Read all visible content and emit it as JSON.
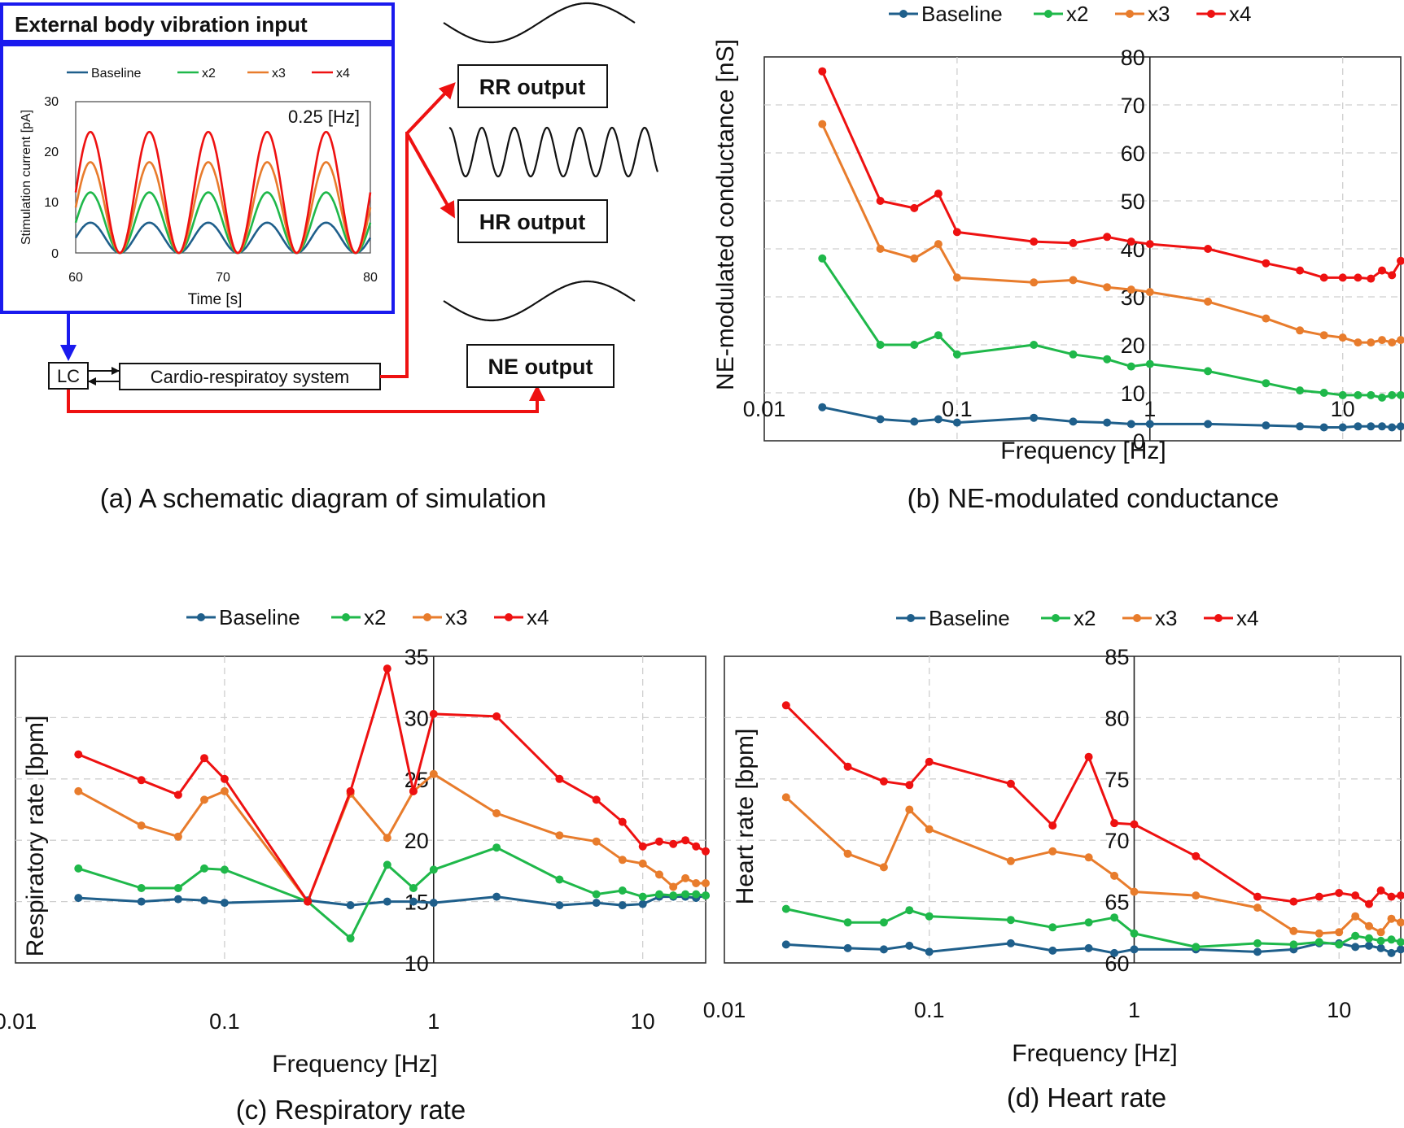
{
  "colors": {
    "Baseline": "#1f5f8b",
    "x2": "#1fb84a",
    "x3": "#e87c2c",
    "x4": "#ee1111",
    "blue": "#1a1aee",
    "red": "#ee1111"
  },
  "panel_a": {
    "title": "External body vibration input",
    "inner_chart": {
      "ylabel": "Stimulation current [pA]",
      "xlabel": "Time [s]",
      "yticks": [
        "30",
        "20",
        "10",
        "0"
      ],
      "xticks": [
        "60",
        "70",
        "80"
      ],
      "annotation": "0.25 [Hz]",
      "legend": [
        "Baseline",
        "x2",
        "x3",
        "x4"
      ]
    },
    "lc_label": "LC",
    "system_label": "Cardio-respiratoy system",
    "rr_label": "RR output",
    "hr_label": "HR output",
    "ne_label": "NE output",
    "caption": "(a) A schematic diagram of simulation"
  },
  "chart_data": [
    {
      "id": "a",
      "type": "line",
      "title": "",
      "xlabel": "Time [s]",
      "ylabel": "Stimulation current [pA]",
      "xlim": [
        60,
        80
      ],
      "ylim": [
        0,
        30
      ],
      "frequency_hz": 0.25,
      "series": [
        {
          "name": "Baseline",
          "amplitude": 6
        },
        {
          "name": "x2",
          "amplitude": 12
        },
        {
          "name": "x3",
          "amplitude": 18
        },
        {
          "name": "x4",
          "amplitude": 24
        }
      ]
    },
    {
      "id": "b",
      "type": "line",
      "title": "",
      "caption": "(b) NE-modulated conductance",
      "xlabel": "Frequency [Hz]",
      "ylabel": "NE-modulated conductance [nS]",
      "xscale": "log",
      "xlim": [
        0.01,
        20
      ],
      "ylim": [
        0,
        80
      ],
      "yticks": [
        "0",
        "10",
        "20",
        "30",
        "40",
        "50",
        "60",
        "70",
        "80"
      ],
      "xticks": [
        "0.01",
        "0.1",
        "1",
        "10"
      ],
      "x": [
        0.02,
        0.04,
        0.06,
        0.08,
        0.1,
        0.25,
        0.4,
        0.6,
        0.8,
        1,
        2,
        4,
        6,
        8,
        10,
        12,
        14,
        16,
        18,
        20
      ],
      "series": [
        {
          "name": "Baseline",
          "values": [
            7,
            4.5,
            4,
            4.5,
            3.8,
            4.8,
            4,
            3.8,
            3.5,
            3.5,
            3.5,
            3.2,
            3,
            2.8,
            2.8,
            3,
            3,
            3,
            2.8,
            3
          ]
        },
        {
          "name": "x2",
          "values": [
            38,
            20,
            20,
            22,
            18,
            20,
            18,
            17,
            15.5,
            16,
            14.5,
            12,
            10.5,
            10,
            9.5,
            9.5,
            9.5,
            9,
            9.5,
            9.5
          ]
        },
        {
          "name": "x3",
          "values": [
            66,
            40,
            38,
            41,
            34,
            33,
            33.5,
            32,
            31.5,
            31,
            29,
            25.5,
            23,
            22,
            21.5,
            20.5,
            20.5,
            21,
            20.5,
            21
          ]
        },
        {
          "name": "x4",
          "values": [
            77,
            50,
            48.5,
            51.5,
            43.5,
            41.5,
            41.2,
            42.5,
            41.5,
            41,
            40,
            37,
            35.5,
            34,
            34,
            34,
            33.8,
            35.5,
            34.5,
            37.5
          ]
        }
      ]
    },
    {
      "id": "c",
      "type": "line",
      "title": "",
      "caption": "(c) Respiratory rate",
      "xlabel": "Frequency [Hz]",
      "ylabel": "Respiratory rate [bpm]",
      "xscale": "log",
      "xlim": [
        0.01,
        20
      ],
      "ylim": [
        10,
        35
      ],
      "yticks": [
        "10",
        "15",
        "20",
        "25",
        "30",
        "35"
      ],
      "xticks": [
        "0.01",
        "0.1",
        "1",
        "10"
      ],
      "x": [
        0.02,
        0.04,
        0.06,
        0.08,
        0.1,
        0.25,
        0.4,
        0.6,
        0.8,
        1,
        2,
        4,
        6,
        8,
        10,
        12,
        14,
        16,
        18,
        20
      ],
      "series": [
        {
          "name": "Baseline",
          "values": [
            15.3,
            15,
            15.2,
            15.1,
            14.9,
            15.1,
            14.7,
            15,
            15,
            14.9,
            15.4,
            14.7,
            14.9,
            14.7,
            14.8,
            15.4,
            15.4,
            15.4,
            15.3,
            15.5
          ]
        },
        {
          "name": "x2",
          "values": [
            17.7,
            16.1,
            16.1,
            17.7,
            17.6,
            15,
            12,
            18,
            16.1,
            17.6,
            19.4,
            16.8,
            15.6,
            15.9,
            15.4,
            15.6,
            15.5,
            15.6,
            15.6,
            15.5
          ]
        },
        {
          "name": "x3",
          "values": [
            24,
            21.2,
            20.3,
            23.3,
            24,
            15,
            23.8,
            20.2,
            24,
            25.4,
            22.2,
            20.4,
            19.9,
            18.4,
            18.1,
            17.2,
            16.2,
            16.9,
            16.5,
            16.5
          ]
        },
        {
          "name": "x4",
          "values": [
            27,
            24.9,
            23.7,
            26.7,
            25,
            15,
            24,
            34,
            24,
            30.3,
            30.1,
            25,
            23.3,
            21.5,
            19.5,
            19.9,
            19.7,
            20,
            19.5,
            19.1
          ]
        }
      ]
    },
    {
      "id": "d",
      "type": "line",
      "title": "",
      "caption": "(d) Heart rate",
      "xlabel": "Frequency [Hz]",
      "ylabel": "Heart rate [bpm]",
      "xscale": "log",
      "xlim": [
        0.01,
        20
      ],
      "ylim": [
        60,
        85
      ],
      "yticks": [
        "60",
        "65",
        "70",
        "75",
        "80",
        "85"
      ],
      "xticks": [
        "0.01",
        "0.1",
        "1",
        "10"
      ],
      "x": [
        0.02,
        0.04,
        0.06,
        0.08,
        0.1,
        0.25,
        0.4,
        0.6,
        0.8,
        1,
        2,
        4,
        6,
        8,
        10,
        12,
        14,
        16,
        18,
        20
      ],
      "series": [
        {
          "name": "Baseline",
          "values": [
            61.5,
            61.2,
            61.1,
            61.4,
            60.9,
            61.6,
            61,
            61.2,
            60.8,
            61.1,
            61.1,
            60.9,
            61.1,
            61.6,
            61.6,
            61.3,
            61.4,
            61.2,
            60.8,
            61.1
          ]
        },
        {
          "name": "x2",
          "values": [
            64.4,
            63.3,
            63.3,
            64.3,
            63.8,
            63.5,
            62.9,
            63.3,
            63.7,
            62.4,
            61.3,
            61.6,
            61.5,
            61.7,
            61.5,
            62.2,
            62,
            61.8,
            61.9,
            61.7
          ]
        },
        {
          "name": "x3",
          "values": [
            73.5,
            68.9,
            67.8,
            72.5,
            70.9,
            68.3,
            69.1,
            68.6,
            67.1,
            65.8,
            65.5,
            64.5,
            62.6,
            62.4,
            62.5,
            63.8,
            63,
            62.5,
            63.6,
            63.3
          ]
        },
        {
          "name": "x4",
          "values": [
            81,
            76,
            74.8,
            74.5,
            76.4,
            74.6,
            71.2,
            76.8,
            71.4,
            71.3,
            68.7,
            65.4,
            65,
            65.4,
            65.7,
            65.5,
            64.8,
            65.9,
            65.4,
            65.5
          ]
        }
      ]
    }
  ],
  "legend_names": [
    "Baseline",
    "x2",
    "x3",
    "x4"
  ]
}
